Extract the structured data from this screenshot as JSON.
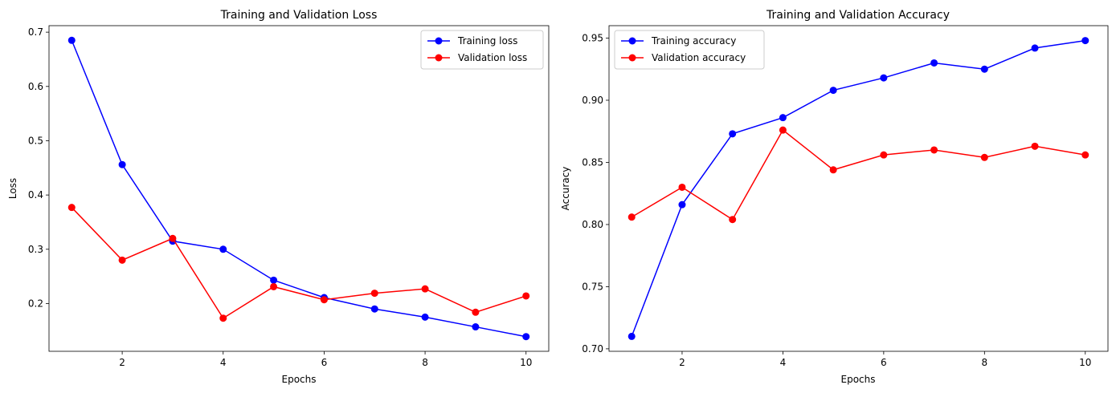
{
  "chart_data": [
    {
      "type": "line",
      "title": "Training and Validation Loss",
      "xlabel": "Epochs",
      "ylabel": "Loss",
      "x": [
        1,
        2,
        3,
        4,
        5,
        6,
        7,
        8,
        9,
        10
      ],
      "xlim": [
        0.55,
        10.45
      ],
      "ylim": [
        0.112,
        0.712
      ],
      "xticks": [
        2,
        4,
        6,
        8,
        10
      ],
      "yticks": [
        0.2,
        0.3,
        0.4,
        0.5,
        0.6,
        0.7
      ],
      "yticklabels": [
        "0.2",
        "0.3",
        "0.4",
        "0.5",
        "0.6",
        "0.7"
      ],
      "grid": false,
      "legend": "top-right",
      "series": [
        {
          "name": "Training loss",
          "color": "#0000ff",
          "values": [
            0.685,
            0.456,
            0.315,
            0.3,
            0.243,
            0.211,
            0.19,
            0.175,
            0.157,
            0.139
          ]
        },
        {
          "name": "Validation loss",
          "color": "#ff0000",
          "values": [
            0.377,
            0.28,
            0.32,
            0.173,
            0.231,
            0.207,
            0.219,
            0.227,
            0.184,
            0.214
          ]
        }
      ]
    },
    {
      "type": "line",
      "title": "Training and Validation Accuracy",
      "xlabel": "Epochs",
      "ylabel": "Accuracy",
      "x": [
        1,
        2,
        3,
        4,
        5,
        6,
        7,
        8,
        9,
        10
      ],
      "xlim": [
        0.55,
        10.45
      ],
      "ylim": [
        0.698,
        0.96
      ],
      "xticks": [
        2,
        4,
        6,
        8,
        10
      ],
      "yticks": [
        0.7,
        0.75,
        0.8,
        0.85,
        0.9,
        0.95
      ],
      "yticklabels": [
        "0.70",
        "0.75",
        "0.80",
        "0.85",
        "0.90",
        "0.95"
      ],
      "grid": false,
      "legend": "top-left",
      "series": [
        {
          "name": "Training accuracy",
          "color": "#0000ff",
          "values": [
            0.71,
            0.816,
            0.873,
            0.886,
            0.908,
            0.918,
            0.93,
            0.925,
            0.942,
            0.948
          ]
        },
        {
          "name": "Validation accuracy",
          "color": "#ff0000",
          "values": [
            0.806,
            0.83,
            0.804,
            0.876,
            0.844,
            0.856,
            0.86,
            0.854,
            0.863,
            0.856
          ]
        }
      ]
    }
  ]
}
